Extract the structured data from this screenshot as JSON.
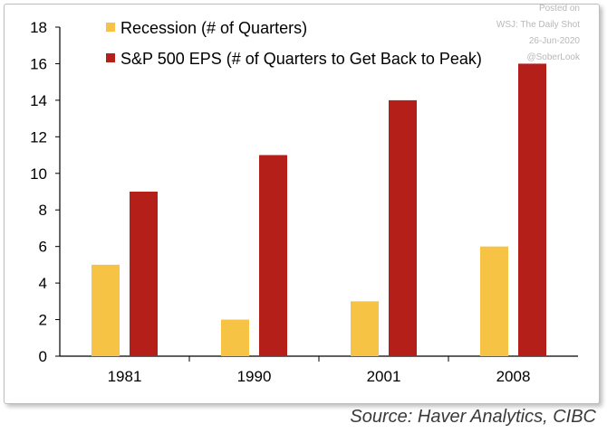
{
  "chart_data": {
    "type": "bar",
    "categories": [
      "1981",
      "1990",
      "2001",
      "2008"
    ],
    "series": [
      {
        "name": "Recession (# of Quarters)",
        "values": [
          5,
          2,
          3,
          6
        ],
        "color": "#F6C344"
      },
      {
        "name": "S&P 500 EPS (# of Quarters to Get Back to Peak)",
        "values": [
          9,
          11,
          14,
          16
        ],
        "color": "#B41F1A"
      }
    ],
    "title": "",
    "xlabel": "",
    "ylabel": "",
    "ylim": [
      0,
      18
    ],
    "yticks": [
      0,
      2,
      4,
      6,
      8,
      10,
      12,
      14,
      16,
      18
    ],
    "grid": false,
    "legend_position": "top"
  },
  "watermark": {
    "line1": "Posted on",
    "line2": "WSJ: The Daily Shot",
    "line3": "26-Jun-2020",
    "line4": "@SoberLook"
  },
  "source": "Source: Haver Analytics, CIBC"
}
